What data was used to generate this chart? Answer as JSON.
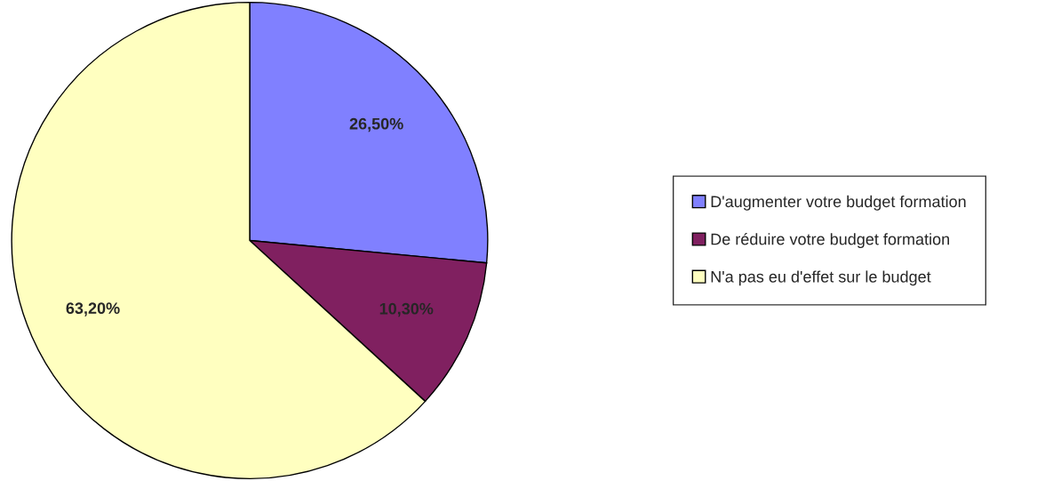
{
  "chart_data": {
    "type": "pie",
    "categories": [
      "D'augmenter votre budget formation",
      "De réduire votre budget formation",
      "N'a pas eu d'effet sur le budget"
    ],
    "values": [
      26.5,
      10.3,
      63.2
    ],
    "value_labels": [
      "26,50%",
      "10,30%",
      "63,20%"
    ],
    "colors": [
      "#8080ff",
      "#802060",
      "#ffffc0"
    ],
    "legend": "right"
  }
}
